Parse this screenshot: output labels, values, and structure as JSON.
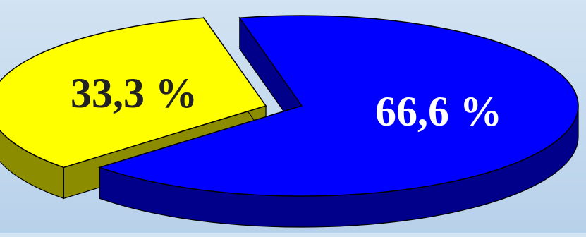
{
  "chart_data": {
    "type": "pie",
    "style": "3d-exploded",
    "title": "",
    "legend": "none",
    "slices": [
      {
        "label": "33,3 %",
        "value": 33.3,
        "color": "#ffff00",
        "side_color": "#8c8c00",
        "label_color": "#222222"
      },
      {
        "label": "66,6 %",
        "value": 66.6,
        "color": "#0000ff",
        "side_color": "#00008a",
        "label_color": "#ffffff"
      }
    ]
  }
}
